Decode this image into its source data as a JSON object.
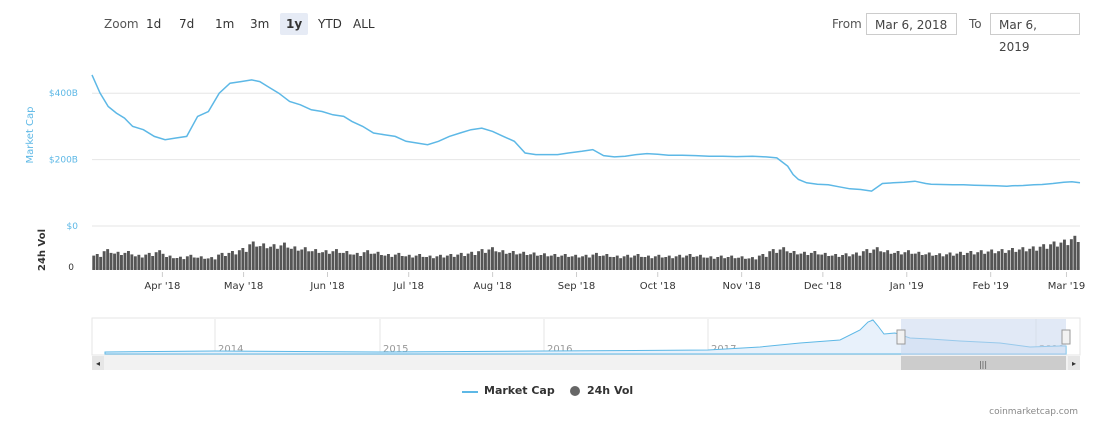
{
  "toolbar": {
    "zoom_label": "Zoom",
    "buttons": [
      "1d",
      "7d",
      "1m",
      "3m",
      "1y",
      "YTD",
      "ALL"
    ],
    "active": "1y",
    "from_label": "From",
    "from_value": "Mar 6, 2018",
    "to_label": "To",
    "to_value": "Mar 6, 2019"
  },
  "legend": {
    "market_cap": "Market Cap",
    "volume": "24h Vol"
  },
  "credit": "coinmarketcap.com",
  "colors": {
    "line": "#5db8e6",
    "volume": "#555555",
    "navigator_fill": "#dbe7f7",
    "navigator_mask": "#c8d7ef"
  },
  "chart_data": {
    "type": "line",
    "title": "",
    "ylabel": "Market Cap",
    "ylabel_volume": "24h Vol",
    "ylim": [
      0,
      500
    ],
    "y_unit": "B USD",
    "y_ticks": [
      "$0",
      "$200B",
      "$400B"
    ],
    "volume_ticks": [
      "0"
    ],
    "x_ticks": [
      "Apr '18",
      "May '18",
      "Jun '18",
      "Jul '18",
      "Aug '18",
      "Sep '18",
      "Oct '18",
      "Nov '18",
      "Dec '18",
      "Jan '19",
      "Feb '19",
      "Mar '19"
    ],
    "navigator_ticks": [
      "2014",
      "2015",
      "2016",
      "2017",
      "2018",
      "2019"
    ],
    "series": [
      {
        "name": "Market Cap",
        "x": [
          "2018-03-06",
          "2018-03-09",
          "2018-03-12",
          "2018-03-15",
          "2018-03-18",
          "2018-03-21",
          "2018-03-25",
          "2018-03-29",
          "2018-04-02",
          "2018-04-06",
          "2018-04-10",
          "2018-04-14",
          "2018-04-18",
          "2018-04-22",
          "2018-04-26",
          "2018-04-30",
          "2018-05-04",
          "2018-05-07",
          "2018-05-10",
          "2018-05-14",
          "2018-05-18",
          "2018-05-22",
          "2018-05-26",
          "2018-05-30",
          "2018-06-03",
          "2018-06-07",
          "2018-06-10",
          "2018-06-14",
          "2018-06-18",
          "2018-06-22",
          "2018-06-26",
          "2018-06-30",
          "2018-07-04",
          "2018-07-08",
          "2018-07-12",
          "2018-07-16",
          "2018-07-20",
          "2018-07-24",
          "2018-07-28",
          "2018-08-01",
          "2018-08-05",
          "2018-08-09",
          "2018-08-13",
          "2018-08-17",
          "2018-08-21",
          "2018-08-25",
          "2018-08-29",
          "2018-09-03",
          "2018-09-07",
          "2018-09-11",
          "2018-09-15",
          "2018-09-19",
          "2018-09-23",
          "2018-09-27",
          "2018-10-01",
          "2018-10-05",
          "2018-10-10",
          "2018-10-15",
          "2018-10-20",
          "2018-10-25",
          "2018-10-30",
          "2018-11-05",
          "2018-11-10",
          "2018-11-14",
          "2018-11-18",
          "2018-11-20",
          "2018-11-22",
          "2018-11-25",
          "2018-11-29",
          "2018-12-03",
          "2018-12-07",
          "2018-12-11",
          "2018-12-15",
          "2018-12-19",
          "2018-12-23",
          "2018-12-27",
          "2018-12-31",
          "2019-01-04",
          "2019-01-08",
          "2019-01-10",
          "2019-01-14",
          "2019-01-18",
          "2019-01-22",
          "2019-01-26",
          "2019-01-30",
          "2019-02-03",
          "2019-02-07",
          "2019-02-09",
          "2019-02-13",
          "2019-02-17",
          "2019-02-20",
          "2019-02-24",
          "2019-02-28",
          "2019-03-03",
          "2019-03-06"
        ],
        "values": [
          455,
          400,
          360,
          340,
          325,
          300,
          290,
          270,
          260,
          265,
          270,
          330,
          345,
          400,
          430,
          435,
          440,
          435,
          420,
          400,
          375,
          365,
          350,
          345,
          335,
          330,
          315,
          300,
          280,
          275,
          270,
          255,
          250,
          245,
          255,
          270,
          280,
          290,
          295,
          285,
          270,
          255,
          220,
          215,
          215,
          215,
          220,
          225,
          230,
          212,
          208,
          210,
          215,
          218,
          216,
          213,
          213,
          212,
          210,
          210,
          209,
          210,
          208,
          205,
          180,
          155,
          140,
          130,
          126,
          124,
          118,
          112,
          110,
          105,
          128,
          130,
          132,
          135,
          128,
          126,
          125,
          124,
          124,
          123,
          122,
          121,
          120,
          121,
          122,
          124,
          125,
          128,
          132,
          133,
          130
        ]
      },
      {
        "name": "24h Vol",
        "x_start": "2018-03-06",
        "x_end": "2019-03-06",
        "values_relative": [
          0.42,
          0.55,
          0.48,
          0.5,
          0.4,
          0.45,
          0.52,
          0.38,
          0.35,
          0.4,
          0.36,
          0.34,
          0.45,
          0.5,
          0.58,
          0.75,
          0.7,
          0.68,
          0.72,
          0.62,
          0.6,
          0.55,
          0.52,
          0.55,
          0.5,
          0.45,
          0.52,
          0.48,
          0.42,
          0.45,
          0.4,
          0.42,
          0.38,
          0.4,
          0.42,
          0.45,
          0.48,
          0.55,
          0.6,
          0.52,
          0.5,
          0.48,
          0.46,
          0.44,
          0.42,
          0.42,
          0.4,
          0.4,
          0.45,
          0.42,
          0.38,
          0.4,
          0.42,
          0.38,
          0.4,
          0.38,
          0.4,
          0.42,
          0.4,
          0.36,
          0.38,
          0.38,
          0.36,
          0.34,
          0.42,
          0.55,
          0.6,
          0.5,
          0.48,
          0.5,
          0.45,
          0.42,
          0.44,
          0.46,
          0.55,
          0.6,
          0.52,
          0.5,
          0.52,
          0.48,
          0.46,
          0.44,
          0.46,
          0.48,
          0.5,
          0.52,
          0.54,
          0.55,
          0.58,
          0.6,
          0.62,
          0.68,
          0.75,
          0.8,
          0.9
        ]
      }
    ]
  }
}
